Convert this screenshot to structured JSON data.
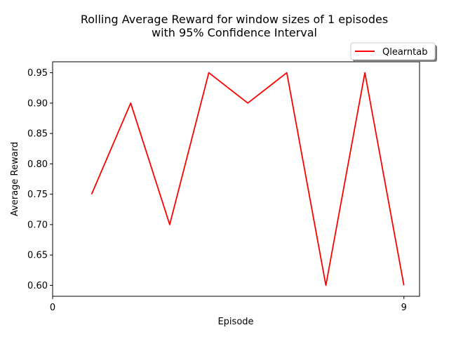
{
  "chart_data": {
    "type": "line",
    "title_line1": "Rolling Average Reward for window sizes of 1 episodes",
    "title_line2": "with 95% Confidence Interval",
    "xlabel": "Episode",
    "ylabel": "Average Reward",
    "x_ticks": [
      0,
      9
    ],
    "y_ticks": [
      "0.60",
      "0.65",
      "0.70",
      "0.75",
      "0.80",
      "0.85",
      "0.90",
      "0.95"
    ],
    "xlim": [
      0,
      9.4
    ],
    "ylim": [
      0.582,
      0.968
    ],
    "grid": false,
    "legend_position": "upper right, outside axes",
    "series": [
      {
        "name": "Qlearntab",
        "color": "#ff0000",
        "x": [
          1,
          2,
          3,
          4,
          5,
          6,
          7,
          8,
          9
        ],
        "values": [
          0.75,
          0.9,
          0.7,
          0.95,
          0.9,
          0.95,
          0.6,
          0.95,
          0.6
        ]
      }
    ]
  }
}
